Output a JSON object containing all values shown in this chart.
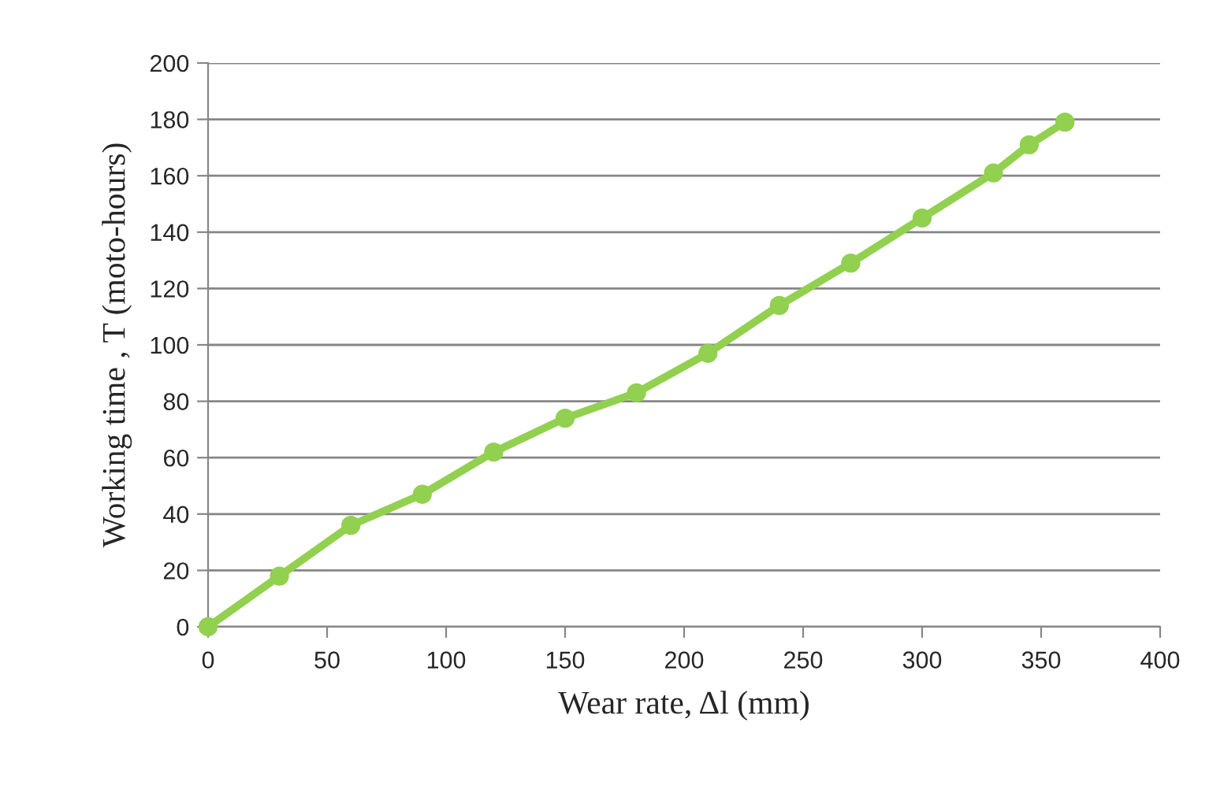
{
  "chart_data": {
    "type": "line",
    "xlabel": "Wear rate, Δl (mm)",
    "ylabel": "Working time , T (moto-hours)",
    "series": [
      {
        "color": "#92d050",
        "x": [
          0,
          30,
          60,
          90,
          120,
          150,
          180,
          210,
          240,
          270,
          300,
          330,
          345,
          360
        ],
        "values": [
          0,
          18,
          36,
          47,
          62,
          74,
          83,
          97,
          114,
          129,
          145,
          161,
          171,
          179
        ]
      }
    ],
    "xlim": [
      0,
      400
    ],
    "xticks": [
      0,
      50,
      100,
      150,
      200,
      250,
      300,
      350,
      400
    ],
    "ylim": [
      0,
      200
    ],
    "yticks": [
      0,
      20,
      40,
      60,
      80,
      100,
      120,
      140,
      160,
      180,
      200
    ],
    "grid": "y",
    "marker": "circle",
    "line_style": "solid"
  }
}
